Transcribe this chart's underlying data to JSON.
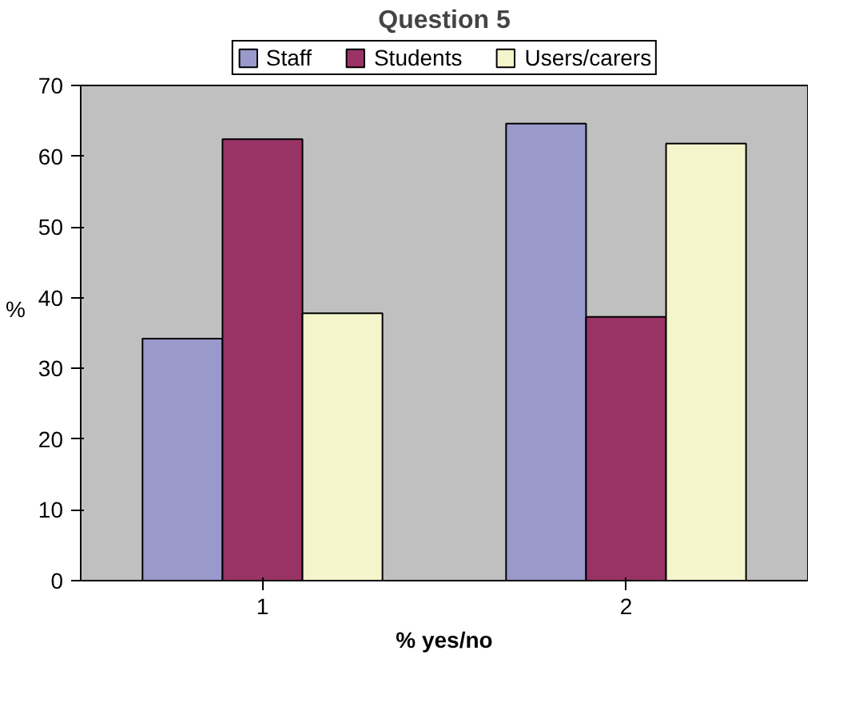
{
  "chart_data": {
    "type": "bar",
    "title": "Question 5",
    "xlabel": "% yes/no",
    "ylabel": "%",
    "categories": [
      "1",
      "2"
    ],
    "series": [
      {
        "name": "Staff",
        "color": "#9999cc",
        "values": [
          34.2,
          64.6
        ]
      },
      {
        "name": "Students",
        "color": "#993366",
        "values": [
          62.4,
          37.3
        ]
      },
      {
        "name": "Users/carers",
        "color": "#f5f5cc",
        "values": [
          37.8,
          61.8
        ]
      }
    ],
    "ylim": [
      0,
      70
    ],
    "yticks": [
      0,
      10,
      20,
      30,
      40,
      50,
      60,
      70
    ],
    "grid": false,
    "legend": "top"
  }
}
